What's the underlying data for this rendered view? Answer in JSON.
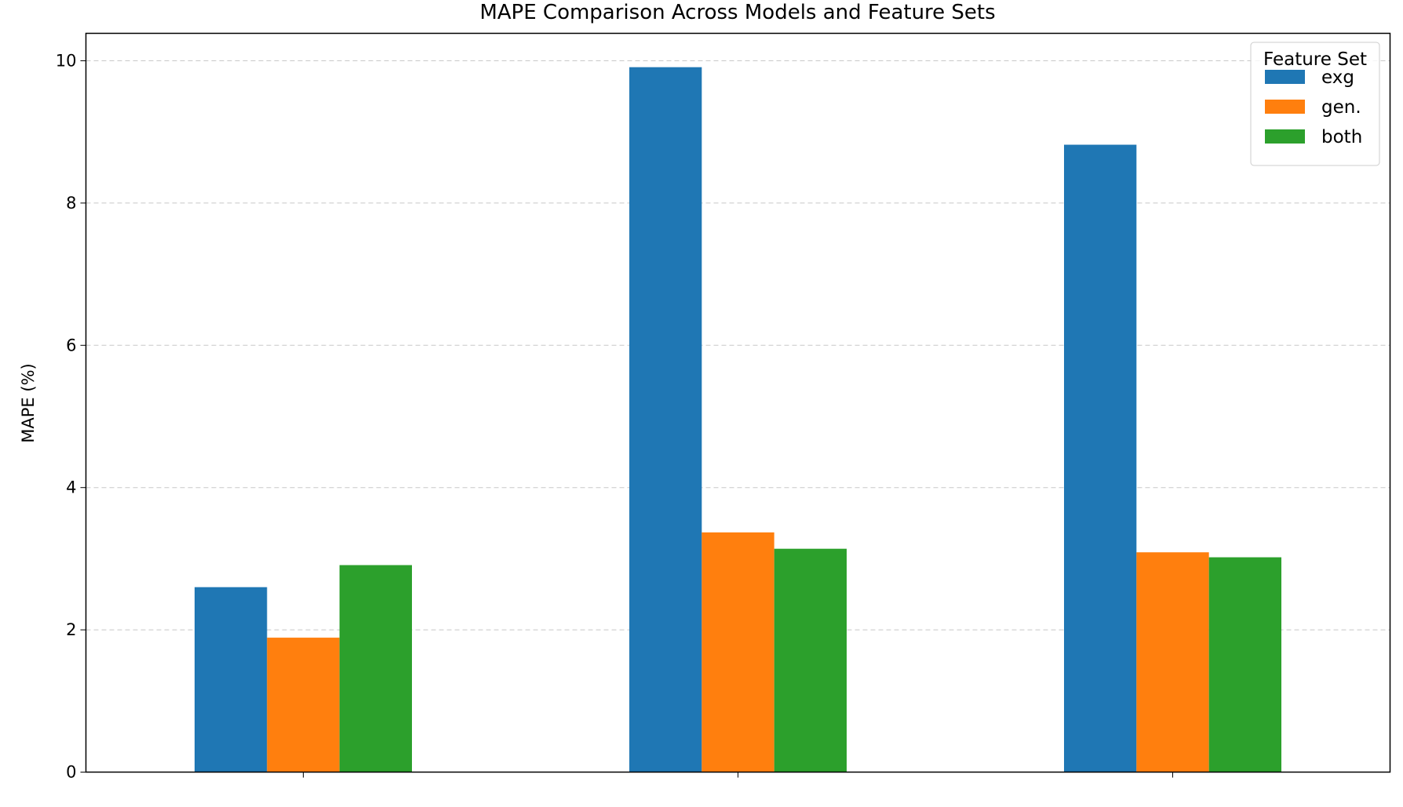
{
  "chart_data": {
    "type": "bar",
    "title": "MAPE Comparison Across Models and Feature Sets",
    "xlabel": "",
    "ylabel": "MAPE (%)",
    "categories": [
      "",
      "",
      ""
    ],
    "ylim": [
      0,
      10.4
    ],
    "yticks": [
      "0",
      "2",
      "4",
      "6",
      "8",
      "10"
    ],
    "grid": "y, dashed",
    "legend": {
      "title": "Feature Set",
      "placement": "top-right"
    },
    "series": [
      {
        "name": "exg",
        "color": "#1f77b4",
        "values": [
          2.6,
          9.91,
          8.82
        ]
      },
      {
        "name": "gen.",
        "color": "#ff7f0e",
        "values": [
          1.89,
          3.37,
          3.09
        ]
      },
      {
        "name": "both",
        "color": "#2ca02c",
        "values": [
          2.91,
          3.14,
          3.02
        ]
      }
    ]
  }
}
